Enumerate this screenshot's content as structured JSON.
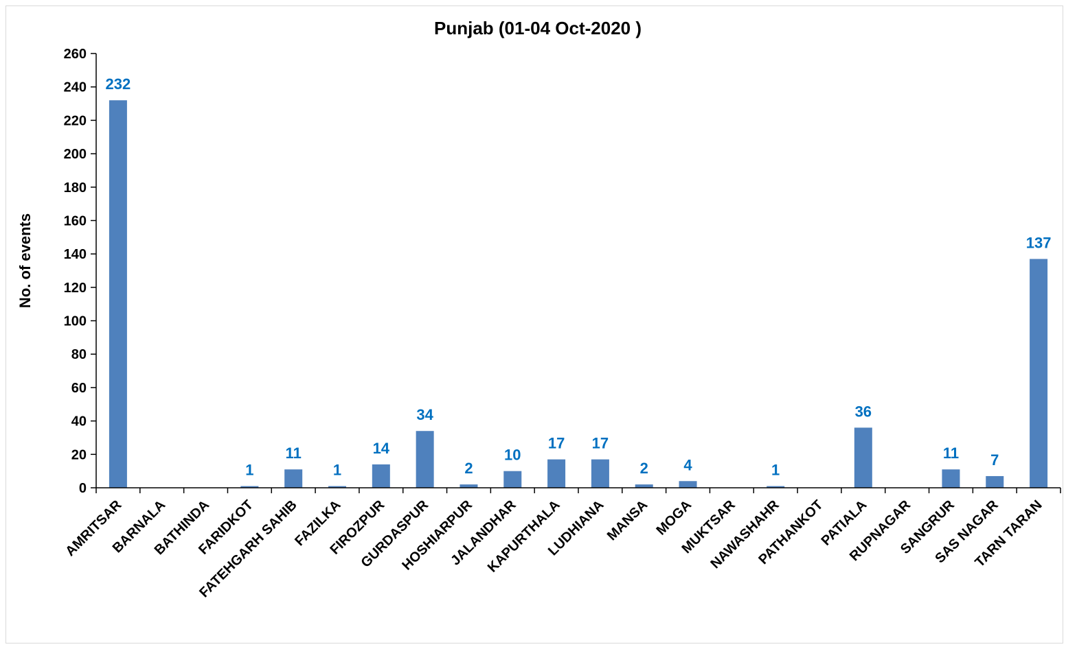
{
  "chart_data": {
    "type": "bar",
    "title": "Punjab (01-04 Oct-2020 )",
    "ylabel": "No. of events",
    "xlabel": "",
    "ylim": [
      0,
      260
    ],
    "ytick_step": 20,
    "grid": false,
    "legend": "none",
    "bar_color": "#4f81bd",
    "label_color": "#0070c0",
    "categories": [
      "AMRITSAR",
      "BARNALA",
      "BATHINDA",
      "FARIDKOT",
      "FATEHGARH SAHIB",
      "FAZILKA",
      "FIROZPUR",
      "GURDASPUR",
      "HOSHIARPUR",
      "JALANDHAR",
      "KAPURTHALA",
      "LUDHIANA",
      "MANSA",
      "MOGA",
      "MUKTSAR",
      "NAWASHAHR",
      "PATHANKOT",
      "PATIALA",
      "RUPNAGAR",
      "SANGRUR",
      "SAS NAGAR",
      "TARN TARAN"
    ],
    "values": [
      232,
      0,
      0,
      1,
      11,
      1,
      14,
      34,
      2,
      10,
      17,
      17,
      2,
      4,
      0,
      1,
      0,
      36,
      0,
      11,
      7,
      137
    ]
  }
}
